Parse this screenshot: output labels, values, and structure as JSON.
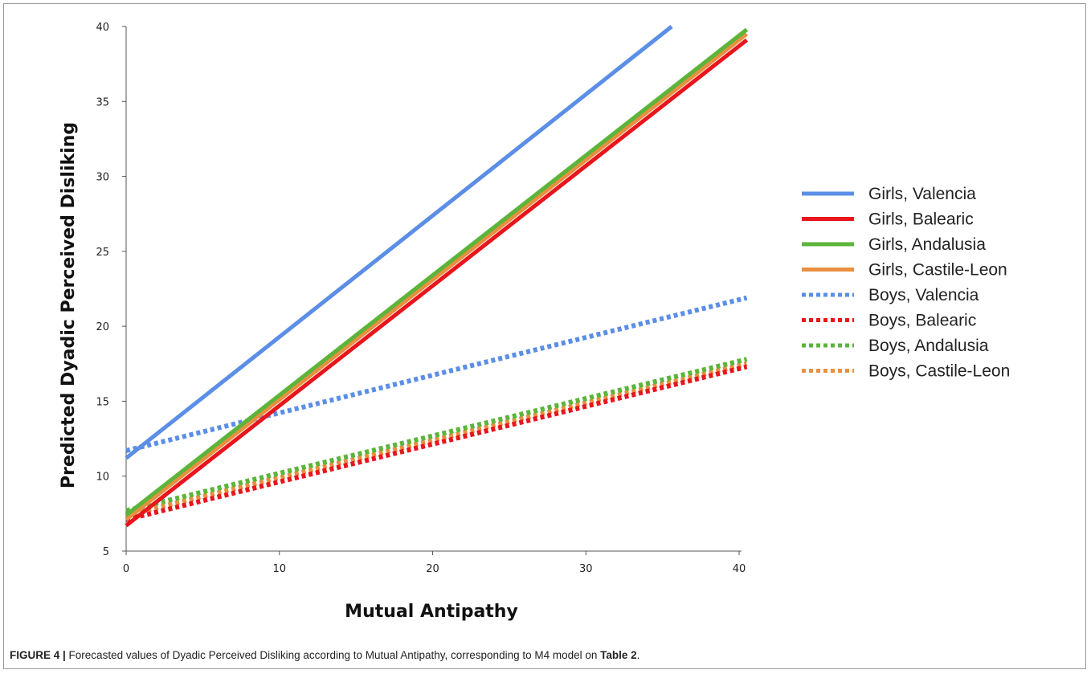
{
  "caption": {
    "label": "FIGURE 4 |",
    "text_before": " Forecasted values of Dyadic Perceived Disliking according to Mutual Antipathy, corresponding to M4 model on ",
    "table_ref": "Table 2",
    "text_after": "."
  },
  "chart_data": {
    "type": "line",
    "title": "",
    "xlabel": "Mutual Antipathy",
    "ylabel": "Predicted Dyadic Perceived Disliking",
    "xlim": [
      0,
      40
    ],
    "ylim": [
      5,
      40
    ],
    "xticks": [
      0,
      10,
      20,
      30,
      40
    ],
    "yticks": [
      5,
      10,
      15,
      20,
      25,
      30,
      35,
      40
    ],
    "grid": false,
    "legend_position": "right",
    "series": [
      {
        "name": "Girls, Valencia",
        "color": "#5b8ee6",
        "dash": "solid",
        "x": [
          0,
          35.6
        ],
        "y": [
          11.2,
          40
        ]
      },
      {
        "name": "Girls, Balearic",
        "color": "#e8151c",
        "dash": "solid",
        "x": [
          0,
          40.5
        ],
        "y": [
          6.7,
          39.1
        ]
      },
      {
        "name": "Girls, Andalusia",
        "color": "#5cb43a",
        "dash": "solid",
        "x": [
          0,
          40.5
        ],
        "y": [
          7.4,
          39.8
        ]
      },
      {
        "name": "Girls, Castile-Leon",
        "color": "#e89040",
        "dash": "solid",
        "x": [
          0,
          40.5
        ],
        "y": [
          7.1,
          39.5
        ]
      },
      {
        "name": "Boys, Valencia",
        "color": "#5b8ee6",
        "dash": "dotted",
        "x": [
          0,
          40.5
        ],
        "y": [
          11.7,
          21.9
        ]
      },
      {
        "name": "Boys, Balearic",
        "color": "#e8151c",
        "dash": "dotted",
        "x": [
          0,
          40.5
        ],
        "y": [
          7.1,
          17.3
        ]
      },
      {
        "name": "Boys, Andalusia",
        "color": "#5cb43a",
        "dash": "dotted",
        "x": [
          0,
          40.5
        ],
        "y": [
          7.7,
          17.8
        ]
      },
      {
        "name": "Boys, Castile-Leon",
        "color": "#e89040",
        "dash": "dotted",
        "x": [
          0,
          40.5
        ],
        "y": [
          7.4,
          17.5
        ]
      }
    ]
  }
}
